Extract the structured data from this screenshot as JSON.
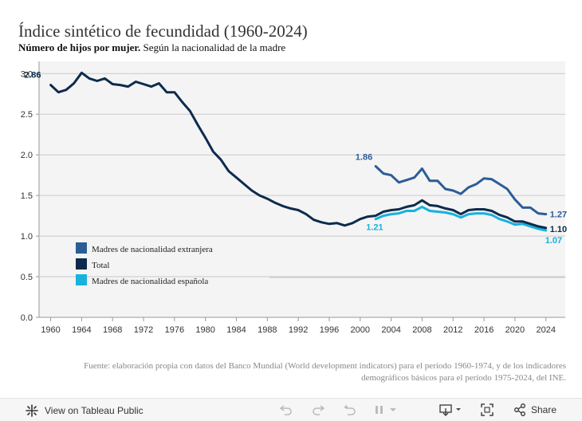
{
  "header": {
    "title": "Índice sintético de fecundidad (1960-2024)",
    "subtitle_bold": "Número de hijos por mujer.",
    "subtitle_rest": " Según la nacionalidad de la madre"
  },
  "chart_data": {
    "type": "line",
    "title": "Índice sintético de fecundidad (1960-2024)",
    "xlabel": "",
    "ylabel": "",
    "xlim": [
      1958.5,
      2026.5
    ],
    "ylim": [
      0,
      3.15
    ],
    "x_ticks": [
      1960,
      1964,
      1968,
      1972,
      1976,
      1980,
      1984,
      1988,
      1992,
      1996,
      2000,
      2004,
      2008,
      2012,
      2016,
      2020,
      2024
    ],
    "y_ticks": [
      {
        "value": 0.0,
        "label": "0.0"
      },
      {
        "value": 0.5,
        "label": "0.5"
      },
      {
        "value": 1.0,
        "label": "1.0"
      },
      {
        "value": 1.5,
        "label": "1.5"
      },
      {
        "value": 2.0,
        "label": "2.0"
      },
      {
        "value": 2.5,
        "label": "2.5"
      },
      {
        "value": 3.0,
        "label": "3.0"
      }
    ],
    "grid": true,
    "legend_position": "bottom-left",
    "series": [
      {
        "name": "Madres de nacionalidad extranjera",
        "color": "#2c5d96",
        "x": [
          2002,
          2003,
          2004,
          2005,
          2006,
          2007,
          2008,
          2009,
          2010,
          2011,
          2012,
          2013,
          2014,
          2015,
          2016,
          2017,
          2018,
          2019,
          2020,
          2021,
          2022,
          2023,
          2024
        ],
        "values": [
          1.86,
          1.77,
          1.75,
          1.66,
          1.69,
          1.72,
          1.83,
          1.68,
          1.68,
          1.58,
          1.56,
          1.52,
          1.6,
          1.64,
          1.71,
          1.7,
          1.64,
          1.58,
          1.45,
          1.35,
          1.35,
          1.28,
          1.27
        ]
      },
      {
        "name": "Total",
        "color": "#0d2b4c",
        "x": [
          1960,
          1961,
          1962,
          1963,
          1964,
          1965,
          1966,
          1967,
          1968,
          1969,
          1970,
          1971,
          1972,
          1973,
          1974,
          1975,
          1976,
          1977,
          1978,
          1979,
          1980,
          1981,
          1982,
          1983,
          1984,
          1985,
          1986,
          1987,
          1988,
          1989,
          1990,
          1991,
          1992,
          1993,
          1994,
          1995,
          1996,
          1997,
          1998,
          1999,
          2000,
          2001,
          2002,
          2003,
          2004,
          2005,
          2006,
          2007,
          2008,
          2009,
          2010,
          2011,
          2012,
          2013,
          2014,
          2015,
          2016,
          2017,
          2018,
          2019,
          2020,
          2021,
          2022,
          2023,
          2024
        ],
        "values": [
          2.86,
          2.77,
          2.8,
          2.88,
          3.01,
          2.94,
          2.91,
          2.94,
          2.87,
          2.86,
          2.84,
          2.9,
          2.87,
          2.84,
          2.88,
          2.77,
          2.77,
          2.65,
          2.54,
          2.37,
          2.21,
          2.04,
          1.94,
          1.8,
          1.72,
          1.64,
          1.56,
          1.5,
          1.46,
          1.41,
          1.37,
          1.34,
          1.32,
          1.27,
          1.2,
          1.17,
          1.15,
          1.16,
          1.13,
          1.16,
          1.21,
          1.24,
          1.25,
          1.3,
          1.32,
          1.33,
          1.36,
          1.38,
          1.44,
          1.38,
          1.37,
          1.34,
          1.32,
          1.27,
          1.32,
          1.33,
          1.33,
          1.31,
          1.26,
          1.23,
          1.18,
          1.18,
          1.15,
          1.12,
          1.1
        ]
      },
      {
        "name": "Madres de nacionalidad española",
        "color": "#17b2de",
        "x": [
          2002,
          2003,
          2004,
          2005,
          2006,
          2007,
          2008,
          2009,
          2010,
          2011,
          2012,
          2013,
          2014,
          2015,
          2016,
          2017,
          2018,
          2019,
          2020,
          2021,
          2022,
          2023,
          2024
        ],
        "values": [
          1.21,
          1.25,
          1.27,
          1.28,
          1.31,
          1.31,
          1.36,
          1.31,
          1.3,
          1.29,
          1.27,
          1.23,
          1.27,
          1.28,
          1.28,
          1.26,
          1.21,
          1.18,
          1.14,
          1.15,
          1.12,
          1.09,
          1.07
        ]
      }
    ],
    "data_labels": [
      {
        "series": 1,
        "x": 1960,
        "value": 2.86,
        "text": "2.86"
      },
      {
        "series": 0,
        "x": 2002,
        "value": 1.86,
        "text": "1.86"
      },
      {
        "series": 2,
        "x": 2002,
        "value": 1.21,
        "text": "1.21"
      },
      {
        "series": 0,
        "x": 2024,
        "value": 1.27,
        "text": "1.27"
      },
      {
        "series": 1,
        "x": 2024,
        "value": 1.1,
        "text": "1.10"
      },
      {
        "series": 2,
        "x": 2024,
        "value": 1.07,
        "text": "1.07"
      }
    ]
  },
  "legend": {
    "items": [
      {
        "label": "Madres de nacionalidad extranjera",
        "color": "#2c5d96"
      },
      {
        "label": "Total",
        "color": "#0d2b4c"
      },
      {
        "label": "Madres de nacionalidad española",
        "color": "#17b2de"
      }
    ]
  },
  "source": {
    "line1": "Fuente: elaboración propia con datos del Banco Mundial (World development indicators) para el período 1960-1974, y de los indicadores",
    "line2": "demográficos básicos para el período 1975-2024, del INE."
  },
  "toolbar": {
    "view_label": "View on Tableau Public",
    "share_label": "Share",
    "icons": [
      "tableau-logo-icon",
      "undo-icon",
      "redo-icon",
      "revert-icon",
      "pause-icon",
      "download-icon",
      "fullscreen-icon",
      "share-icon"
    ]
  }
}
